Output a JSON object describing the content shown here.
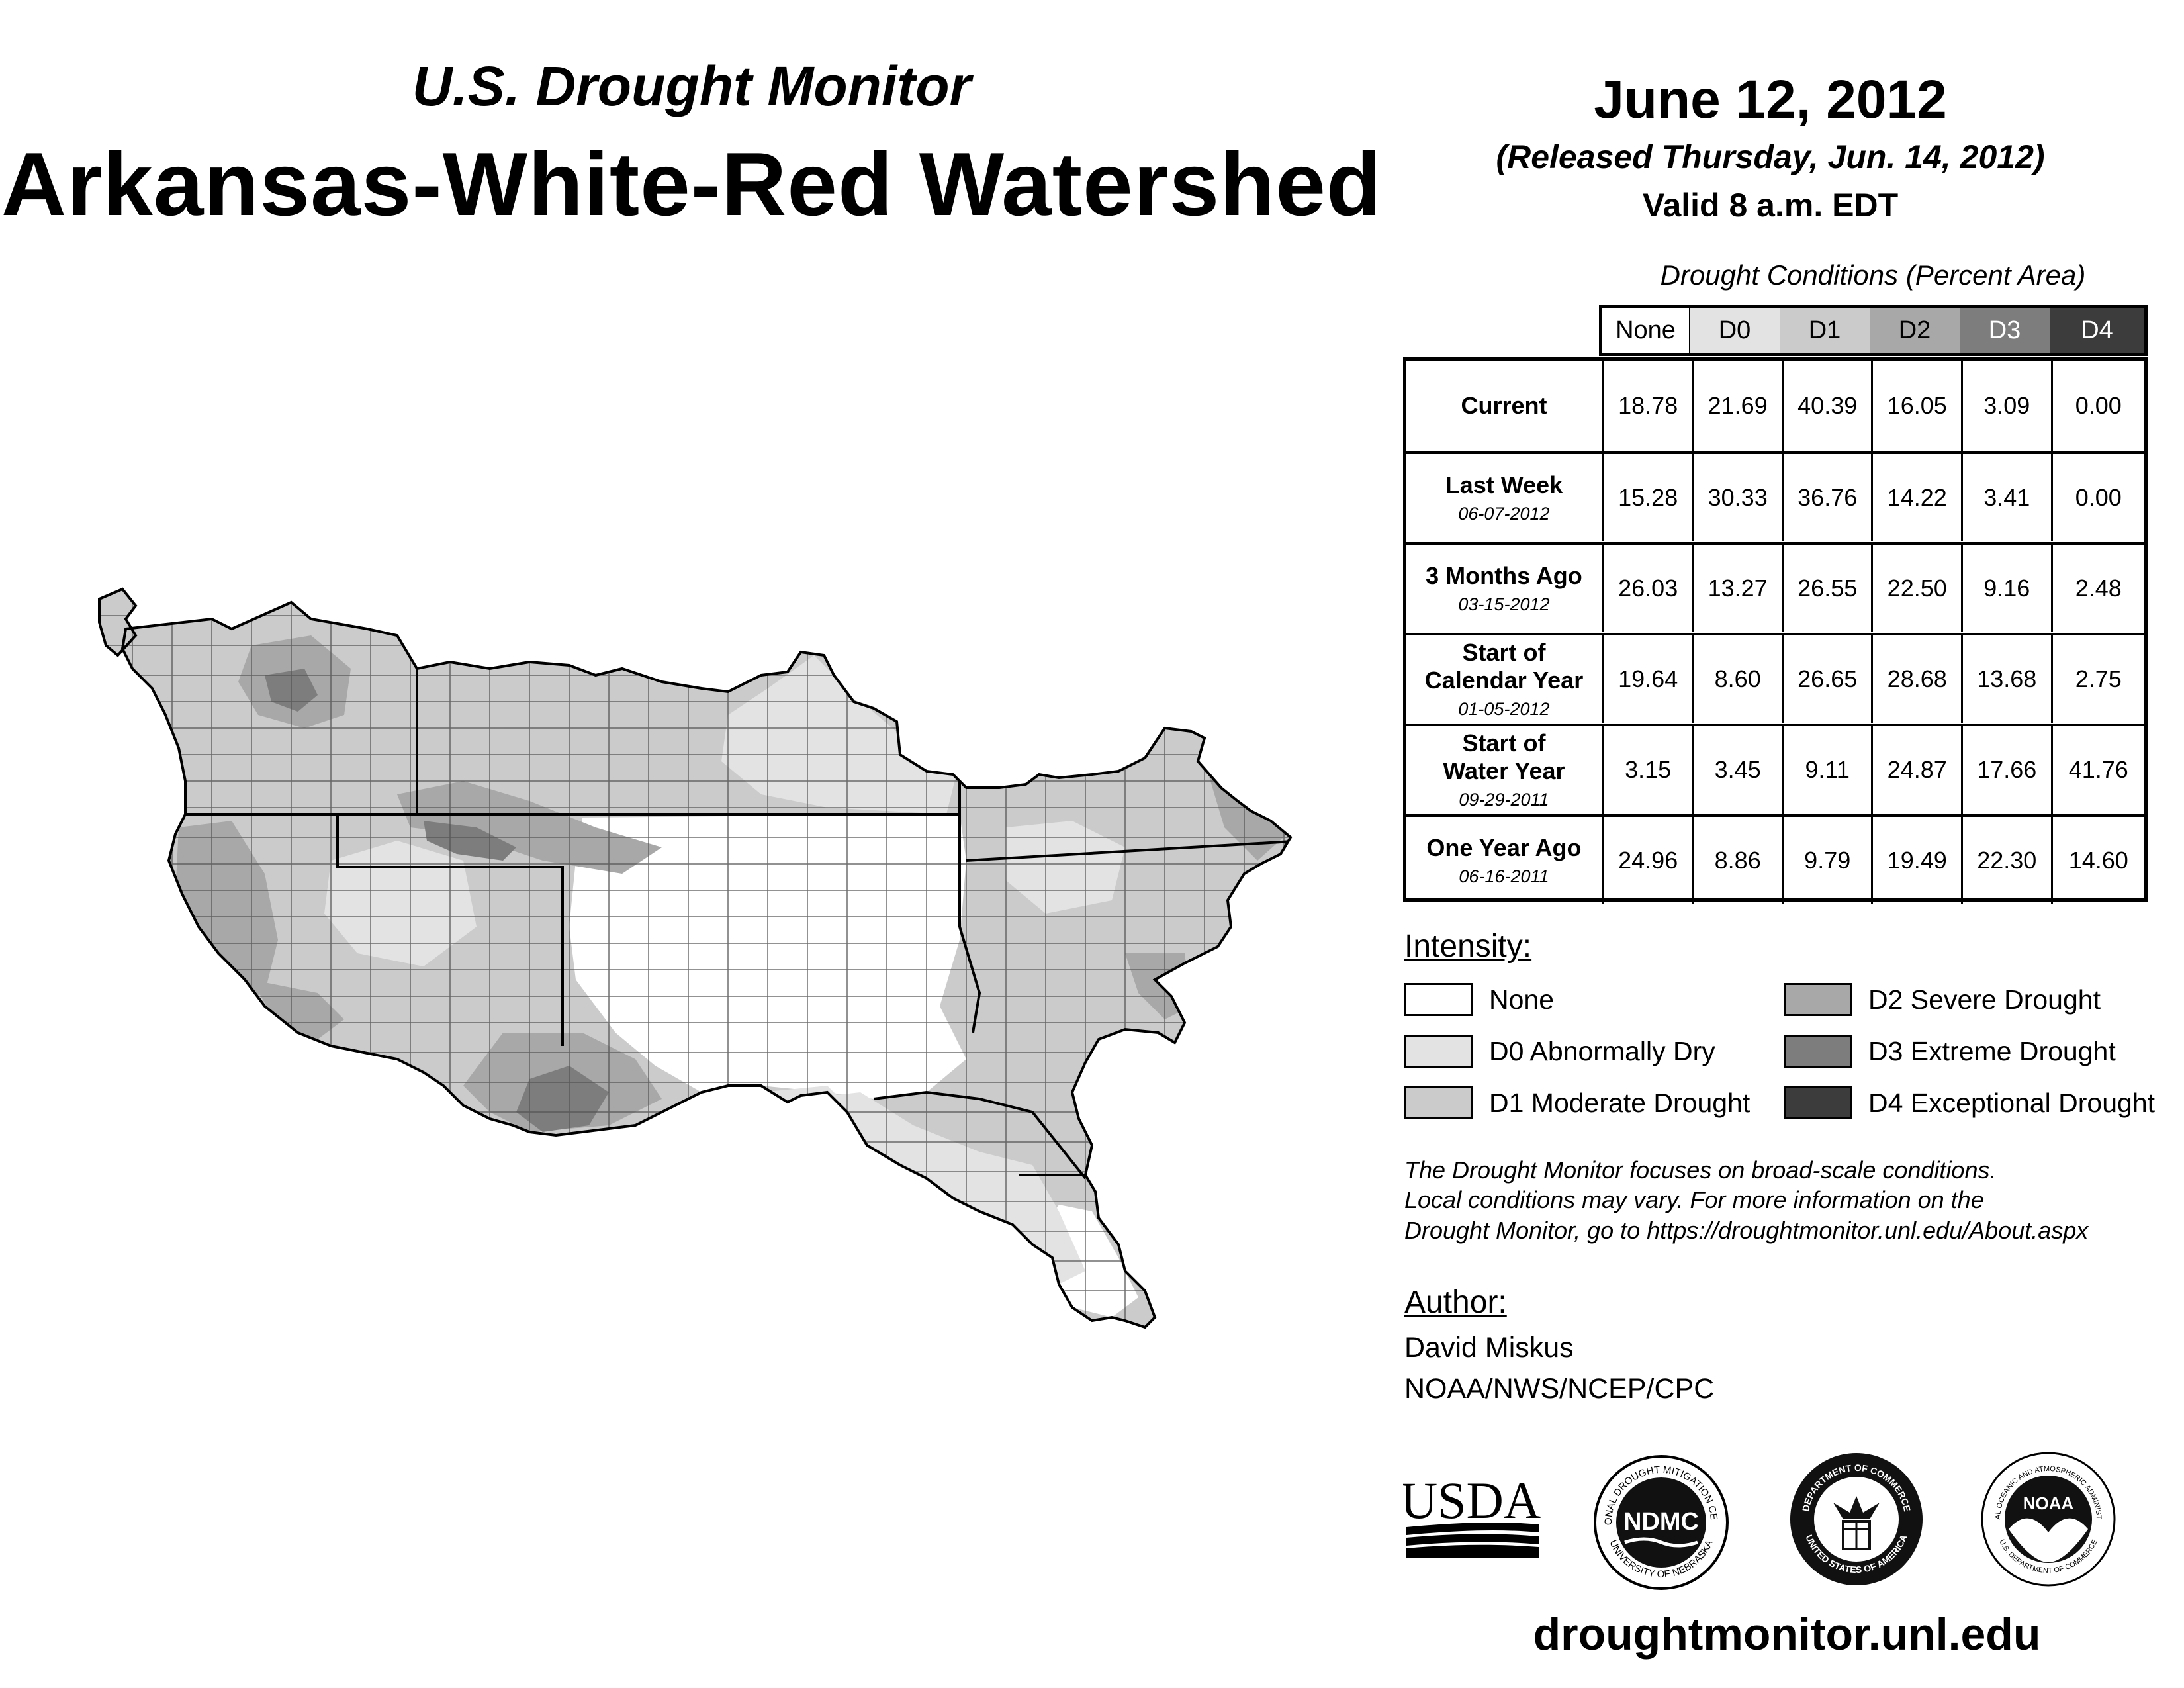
{
  "header": {
    "subtitle": "U.S. Drought Monitor",
    "title": "Arkansas-White-Red Watershed",
    "date": "June 12, 2012",
    "released": "(Released Thursday, Jun. 14, 2012)",
    "valid": "Valid 8 a.m. EDT"
  },
  "table": {
    "title": "Drought Conditions (Percent Area)",
    "columns": [
      "None",
      "D0",
      "D1",
      "D2",
      "D3",
      "D4"
    ],
    "column_colors": [
      "#ffffff",
      "#e3e3e3",
      "#cbcbcb",
      "#a8a8a8",
      "#7d7d7d",
      "#3c3c3c"
    ],
    "column_text_colors": [
      "#000000",
      "#000000",
      "#000000",
      "#000000",
      "#ffffff",
      "#ffffff"
    ],
    "rows": [
      {
        "label": "Current",
        "date": "",
        "values": [
          "18.78",
          "21.69",
          "40.39",
          "16.05",
          "3.09",
          "0.00"
        ]
      },
      {
        "label": "Last Week",
        "date": "06-07-2012",
        "values": [
          "15.28",
          "30.33",
          "36.76",
          "14.22",
          "3.41",
          "0.00"
        ]
      },
      {
        "label": "3 Months Ago",
        "date": "03-15-2012",
        "values": [
          "26.03",
          "13.27",
          "26.55",
          "22.50",
          "9.16",
          "2.48"
        ]
      },
      {
        "label": "Start of\nCalendar Year",
        "date": "01-05-2012",
        "values": [
          "19.64",
          "8.60",
          "26.65",
          "28.68",
          "13.68",
          "2.75"
        ]
      },
      {
        "label": "Start of\nWater Year",
        "date": "09-29-2011",
        "values": [
          "3.15",
          "3.45",
          "9.11",
          "24.87",
          "17.66",
          "41.76"
        ]
      },
      {
        "label": "One Year Ago",
        "date": "06-16-2011",
        "values": [
          "24.96",
          "8.86",
          "9.79",
          "19.49",
          "22.30",
          "14.60"
        ]
      }
    ]
  },
  "legend": {
    "heading": "Intensity:",
    "items": [
      {
        "label": "None",
        "color": "#ffffff"
      },
      {
        "label": "D0 Abnormally Dry",
        "color": "#e3e3e3"
      },
      {
        "label": "D1 Moderate Drought",
        "color": "#cbcbcb"
      },
      {
        "label": "D2 Severe Drought",
        "color": "#a8a8a8"
      },
      {
        "label": "D3 Extreme Drought",
        "color": "#7d7d7d"
      },
      {
        "label": "D4 Exceptional Drought",
        "color": "#3c3c3c"
      }
    ]
  },
  "note": {
    "line1": "The Drought Monitor focuses on broad-scale conditions.",
    "line2": "Local conditions may vary. For more information on the",
    "line3": "Drought Monitor, go to https://droughtmonitor.unl.edu/About.aspx"
  },
  "author": {
    "heading": "Author:",
    "name": "David Miskus",
    "org": "NOAA/NWS/NCEP/CPC"
  },
  "logos": {
    "usda": "USDA",
    "ndmc": "NDMC",
    "ndmc_ring_top": "NATIONAL DROUGHT MITIGATION CENTER",
    "ndmc_ring_bottom": "UNIVERSITY OF NEBRASKA",
    "doc_ring_top": "DEPARTMENT OF COMMERCE",
    "doc_ring_bottom": "UNITED STATES OF AMERICA",
    "noaa": "NOAA",
    "noaa_ring_top": "NATIONAL OCEANIC AND ATMOSPHERIC ADMINISTRATION",
    "noaa_ring_bottom": "U.S. DEPARTMENT OF COMMERCE"
  },
  "footer": {
    "website": "droughtmonitor.unl.edu"
  }
}
